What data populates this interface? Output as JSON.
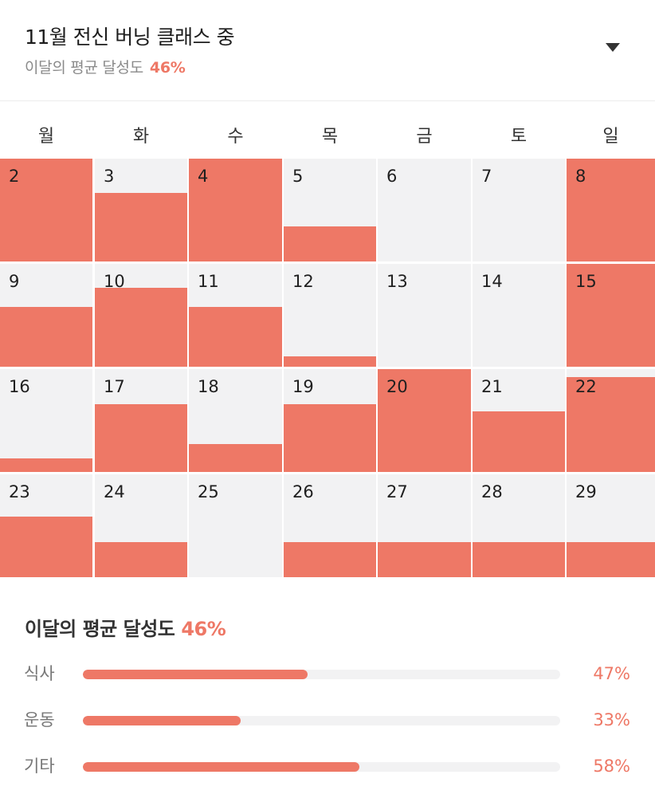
{
  "header": {
    "title": "11월 전신 버닝 클래스 중",
    "subtitle_label": "이달의 평균 달성도",
    "subtitle_value": "46%"
  },
  "weekdays": [
    "월",
    "화",
    "수",
    "목",
    "금",
    "토",
    "일"
  ],
  "calendar": {
    "accent": "#ee7866",
    "empty": "#f2f2f3",
    "weeks": [
      [
        {
          "day": "2",
          "level": 1.0
        },
        {
          "day": "3",
          "level": 0.67
        },
        {
          "day": "4",
          "level": 1.0
        },
        {
          "day": "5",
          "level": 0.34
        },
        {
          "day": "6",
          "level": 0
        },
        {
          "day": "7",
          "level": 0
        },
        {
          "day": "8",
          "level": 1.0
        }
      ],
      [
        {
          "day": "9",
          "level": 0.58
        },
        {
          "day": "10",
          "level": 0.77
        },
        {
          "day": "11",
          "level": 0.58
        },
        {
          "day": "12",
          "level": 0.1
        },
        {
          "day": "13",
          "level": 0
        },
        {
          "day": "14",
          "level": 0
        },
        {
          "day": "15",
          "level": 1.0
        }
      ],
      [
        {
          "day": "16",
          "level": 0.13
        },
        {
          "day": "17",
          "level": 0.66
        },
        {
          "day": "18",
          "level": 0.27
        },
        {
          "day": "19",
          "level": 0.66
        },
        {
          "day": "20",
          "level": 1.0
        },
        {
          "day": "21",
          "level": 0.59
        },
        {
          "day": "22",
          "level": 0.92
        }
      ],
      [
        {
          "day": "23",
          "level": 0.59
        },
        {
          "day": "24",
          "level": 0.34
        },
        {
          "day": "25",
          "level": 0
        },
        {
          "day": "26",
          "level": 0.34
        },
        {
          "day": "27",
          "level": 0.34
        },
        {
          "day": "28",
          "level": 0.34
        },
        {
          "day": "29",
          "level": 0.34
        }
      ]
    ]
  },
  "summary": {
    "title": "이달의 평균 달성도",
    "value": "46%",
    "stats": [
      {
        "label": "식사",
        "value": "47%",
        "fraction": 0.47
      },
      {
        "label": "운동",
        "value": "33%",
        "fraction": 0.33
      },
      {
        "label": "기타",
        "value": "58%",
        "fraction": 0.58
      }
    ]
  }
}
